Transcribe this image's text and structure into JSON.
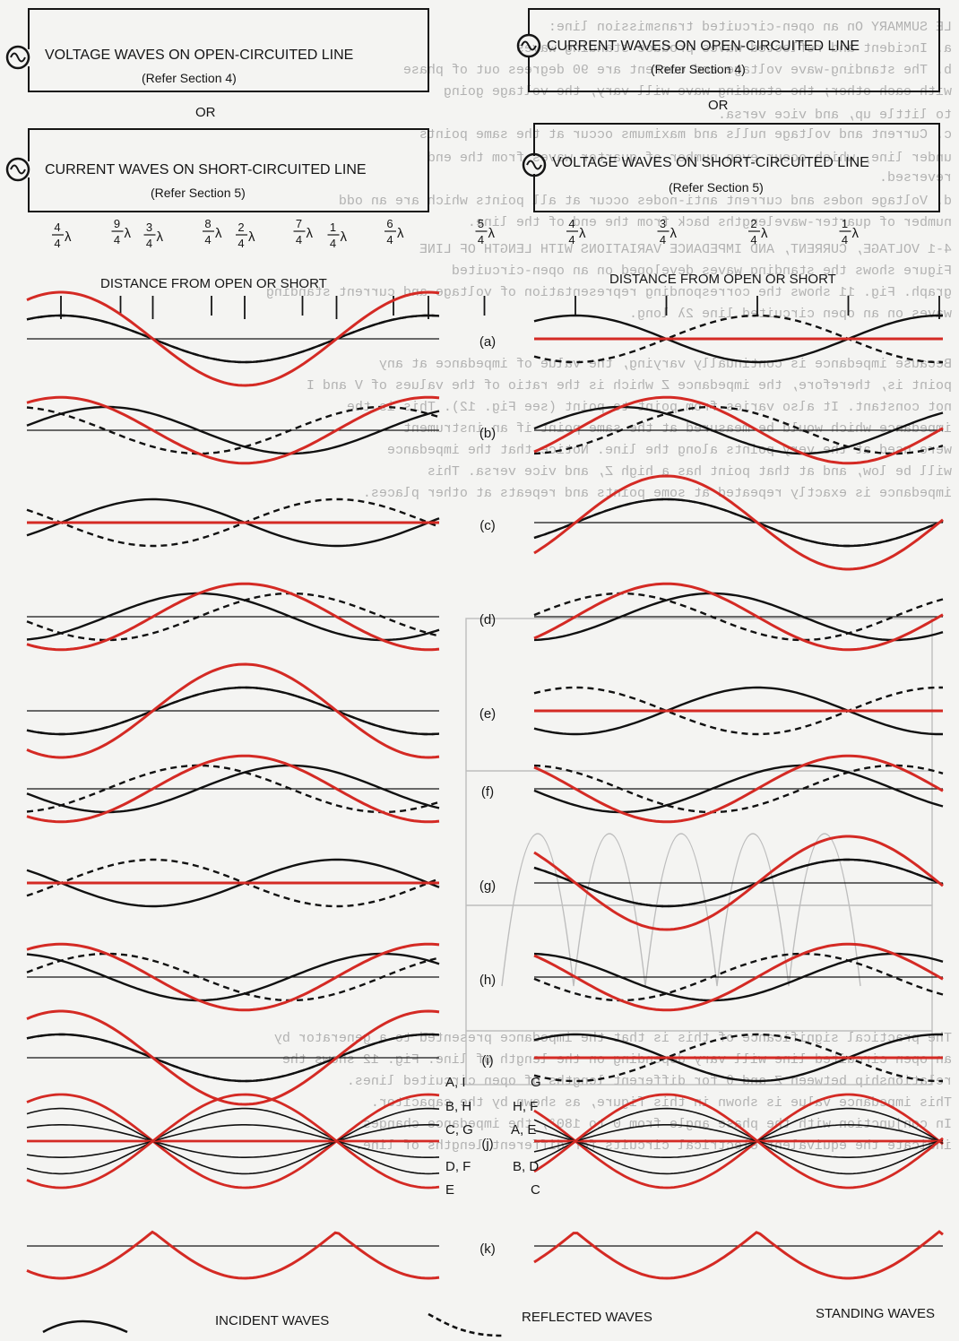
{
  "left_panel": {
    "title_open": "VOLTAGE WAVES ON OPEN-CIRCUITED LINE",
    "ref_open": "(Refer Section 4)",
    "or": "OR",
    "title_short": "CURRENT WAVES ON SHORT-CIRCUITED LINE",
    "ref_short": "(Refer Section 5)",
    "distance_label": "DISTANCE FROM OPEN OR SHORT"
  },
  "right_panel": {
    "title_open": "CURRENT WAVES ON OPEN-CIRCUITED LINE",
    "ref_open": "(Refer Section 4)",
    "or": "OR",
    "title_short": "VOLTAGE WAVES ON SHORT-CIRCUITED LINE",
    "ref_short": "(Refer Section 5)",
    "distance_label": "DISTANCE FROM OPEN OR SHORT"
  },
  "quarter_wave_fractions": [
    {
      "num": "9",
      "den": "4"
    },
    {
      "num": "8",
      "den": "4"
    },
    {
      "num": "7",
      "den": "4"
    },
    {
      "num": "6",
      "den": "4"
    },
    {
      "num": "5",
      "den": "4"
    },
    {
      "num": "4",
      "den": "4"
    },
    {
      "num": "3",
      "den": "4"
    },
    {
      "num": "2",
      "den": "4"
    },
    {
      "num": "1",
      "den": "4"
    }
  ],
  "lambda_symbol": "λ",
  "row_labels": [
    "(a)",
    "(b)",
    "(c)",
    "(d)",
    "(e)",
    "(f)",
    "(g)",
    "(h)",
    "(i)",
    "(j)",
    "(k)"
  ],
  "legend_j": {
    "left": [
      "A, I",
      "B, H",
      "C, G",
      "D, F",
      "E"
    ],
    "right": [
      "G",
      "H, F",
      "A, E",
      "B, D",
      "C"
    ]
  },
  "legend": {
    "incident": "INCIDENT WAVES",
    "reflected": "REFLECTED WAVES",
    "standing": "STANDING WAVES"
  },
  "colors": {
    "standing_wave": "#d42a24",
    "incident_wave": "#111111",
    "reflected_wave": "#111111",
    "ghost_text": "#7c7c7c"
  },
  "background_bleed_through": [
    "LE SUMMARY    On an open-circuited transmission line:",
    "     a.  Incident and reflected waves produce standing waves",
    "     b.  The standing-wave voltage and current are 90 degrees out of phase",
    "         with each other; the standing wave will vary, the voltage going",
    "         to little up, and vice versa.",
    "     c.  Current and voltage nulls and maximums occur at the same points",
    "         under line, which occur even number of quarter waves from the end",
    "         reversed.",
    "     d.  Voltage nodes and current anti-nodes occur at all points which are an odd",
    "         number of quarter-wavelengths back from the end of the line.",
    "4-1  VOLTAGE, CURRENT, AND IMPEDANCE VARIATIONS WITH LENGTH OF LINE",
    "        Figure shows the standing waves developed on an open-circuited",
    "graph.  Fig. 11 shows the corresponding representation of voltage and current standing",
    "waves on an open circuited line 2λ long.",
    "Because impedance is continually varying, the value of impedance at any",
    "point is, therefore, the impedance Z which is the ratio of the values of V and I",
    "not constant. It also varies from point to point (see Fig. 12).  This is the",
    "impedance which would be measured at the same point if an instrument",
    "were used at the very points along the line.  Notice that the impedance",
    "will be low, and at that point has a high Z, and vice versa.  This",
    "impedance is exactly repeated at some points and repeats at other places.",
    "The practical significance of this is that the impedance presented to a generator by",
    "an open circuited line will vary depending on the length of line.  Fig. 12 shows the",
    "relationship between Z and θ for different lengths of open circuited lines.",
    "This impedance value is shown in this figure, as shown by the capacitor.",
    "In conjunction with the phase angle from 0 to 180°, the impedance changes",
    "indicate the equivalent electrical circuits for different lengths of line."
  ]
}
